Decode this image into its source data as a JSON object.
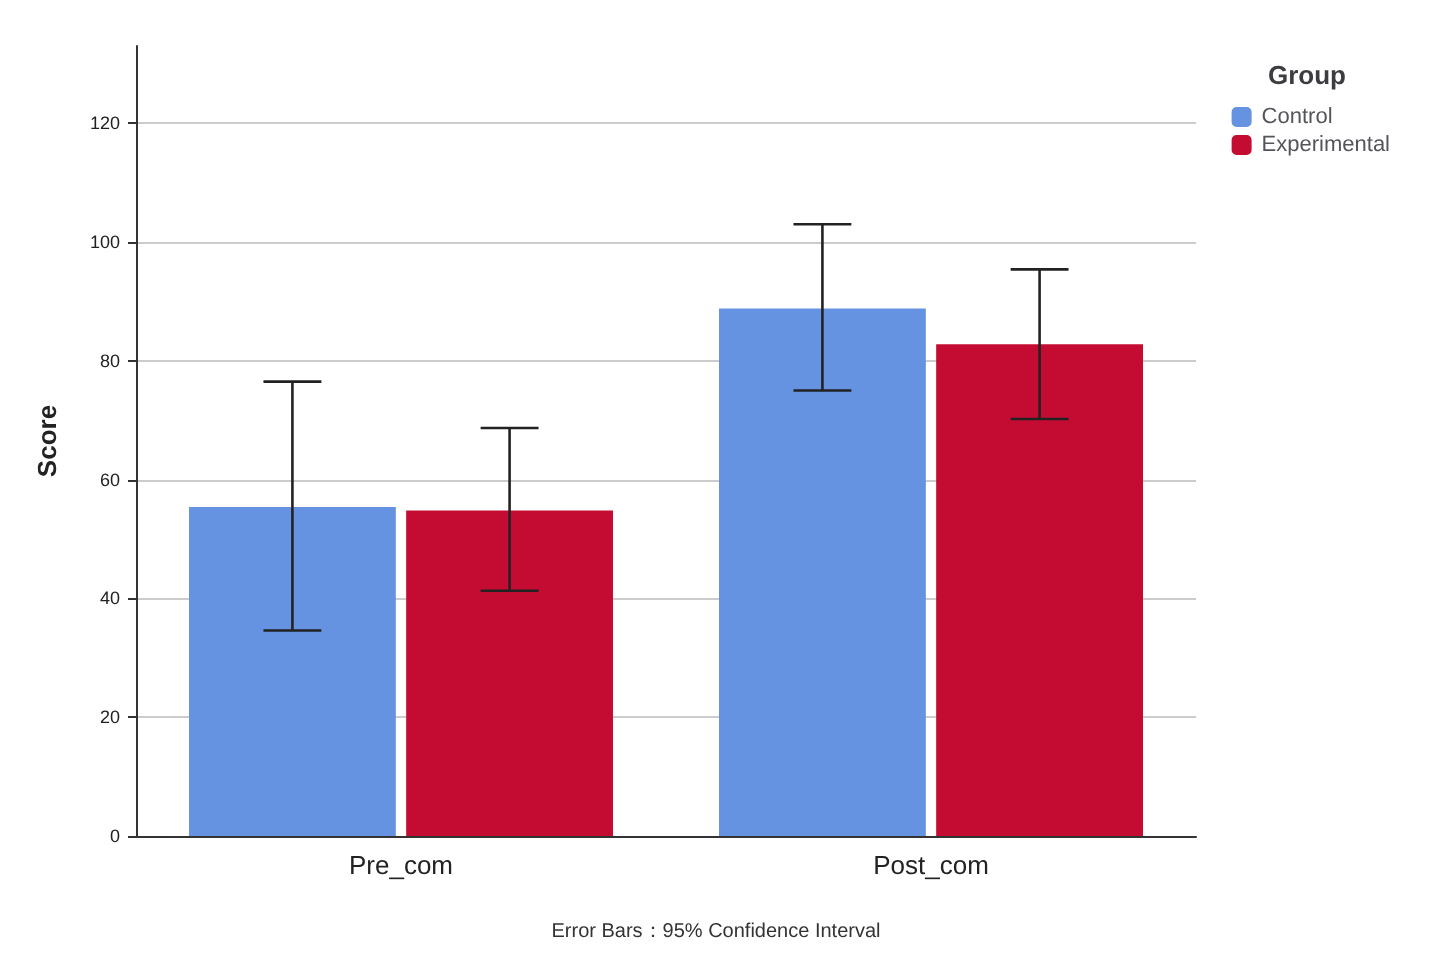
{
  "chart_data": {
    "type": "bar",
    "ylabel": "Score",
    "legend_title": "Group",
    "categories": [
      "Pre_com",
      "Post_com"
    ],
    "series": [
      {
        "name": "Control",
        "color": "#6593e2",
        "values": [
          55.4,
          88.8
        ],
        "errors": [
          [
            34.6,
            76.5
          ],
          [
            75,
            103
          ]
        ]
      },
      {
        "name": "Experimental",
        "color": "#c40c33",
        "values": [
          54.8,
          82.8
        ],
        "errors": [
          [
            41.3,
            68.7
          ],
          [
            70.2,
            95.4
          ]
        ]
      }
    ],
    "ylim": [
      0,
      133
    ],
    "yticks": [
      0,
      20,
      40,
      60,
      80,
      100,
      120
    ],
    "grid": "y",
    "legend": "top right",
    "annotations": [
      "Error Bars：95% Confidence Interval"
    ]
  }
}
